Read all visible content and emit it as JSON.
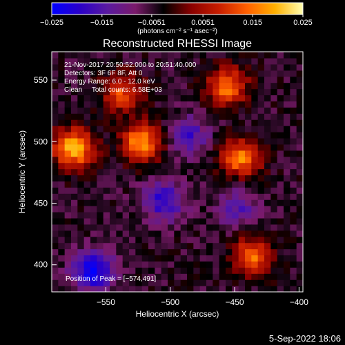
{
  "colorbar": {
    "tick_labels": [
      "−0.025",
      "−0.015",
      "−0.0051",
      "0.0051",
      "0.015",
      "0.025"
    ],
    "range": [
      -0.025,
      0.025
    ],
    "unit_label": "(photons cm⁻² s⁻¹ asec⁻²)",
    "colors": [
      "#0000ff",
      "#2a00c8",
      "#5a1aa0",
      "#7a1a6a",
      "#000000",
      "#8a0000",
      "#c81e00",
      "#ff6000",
      "#ffb000",
      "#ffffb0"
    ]
  },
  "chart_data": {
    "type": "heatmap",
    "title": "Reconstructed RHESSI Image",
    "xlabel": "Heliocentric X (arcsec)",
    "ylabel": "Heliocentric Y (arcsec)",
    "xlim": [
      -592,
      -397
    ],
    "ylim": [
      378,
      573
    ],
    "x_ticks": [
      -550,
      -500,
      -450,
      -400
    ],
    "y_ticks": [
      400,
      450,
      500,
      550
    ],
    "x_tick_labels": [
      "−550",
      "−500",
      "−450",
      "−400"
    ],
    "y_tick_labels": [
      "400",
      "450",
      "500",
      "550"
    ],
    "info_lines": [
      "21-Nov-2017 20:50:52.000 to 20:51:40.000",
      "Detectors: 3F 6F 8F, Att 0",
      "Energy Range: 6.0 - 12.0 keV",
      "Clean     Total counts: 6.58E+03"
    ],
    "peak_text": "Position of Peak = [−574,491]",
    "peak": [
      -574,
      491
    ],
    "sources": [
      {
        "x": -575,
        "y": 495,
        "value": 0.025
      },
      {
        "x": -522,
        "y": 500,
        "value": 0.022
      },
      {
        "x": -537,
        "y": 540,
        "value": 0.016
      },
      {
        "x": -456,
        "y": 545,
        "value": 0.02
      },
      {
        "x": -445,
        "y": 487,
        "value": 0.02
      },
      {
        "x": -436,
        "y": 407,
        "value": 0.019
      },
      {
        "x": -505,
        "y": 452,
        "value": -0.015
      },
      {
        "x": -485,
        "y": 505,
        "value": -0.012
      },
      {
        "x": -560,
        "y": 395,
        "value": -0.02
      },
      {
        "x": -448,
        "y": 447,
        "value": -0.01
      }
    ]
  },
  "footer": {
    "date_stamp": "5-Sep-2022 18:06"
  }
}
